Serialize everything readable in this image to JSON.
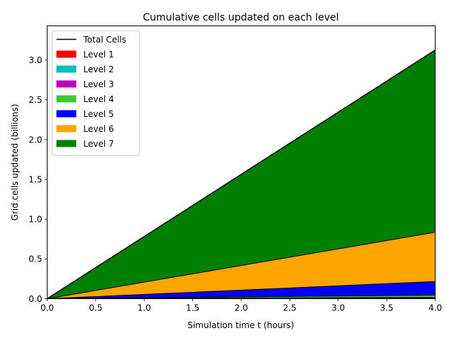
{
  "chart_data": {
    "type": "area",
    "title": "Cumulative cells updated on each level",
    "xlabel": "Simulation time t (hours)",
    "ylabel": "Grid cells updated (billions)",
    "xlim": [
      0.0,
      4.0
    ],
    "ylim": [
      0.0,
      3.43
    ],
    "xticks": [
      "0.0",
      "0.5",
      "1.0",
      "1.5",
      "2.0",
      "2.5",
      "3.0",
      "3.5",
      "4.0"
    ],
    "yticks": [
      "0.0",
      "0.5",
      "1.0",
      "1.5",
      "2.0",
      "2.5",
      "3.0"
    ],
    "grid": false,
    "stacked": true,
    "legend_position": "upper-left",
    "x": [
      0.0,
      4.0
    ],
    "series": [
      {
        "name": "Level 1",
        "color": "#ff0000",
        "values": [
          0.0,
          0.004
        ]
      },
      {
        "name": "Level 2",
        "color": "#00bfbf",
        "values": [
          0.0,
          0.006
        ]
      },
      {
        "name": "Level 3",
        "color": "#bf00bf",
        "values": [
          0.0,
          0.006
        ]
      },
      {
        "name": "Level 4",
        "color": "#32cd32",
        "values": [
          0.0,
          0.03
        ]
      },
      {
        "name": "Level 5",
        "color": "#0000ff",
        "values": [
          0.0,
          0.17
        ]
      },
      {
        "name": "Level 6",
        "color": "#ffa500",
        "values": [
          0.0,
          0.62
        ]
      },
      {
        "name": "Level 7",
        "color": "#008000",
        "values": [
          0.0,
          2.29
        ]
      }
    ],
    "total_series": {
      "name": "Total Cells",
      "color": "#000000",
      "values": [
        0.0,
        3.126
      ]
    }
  }
}
